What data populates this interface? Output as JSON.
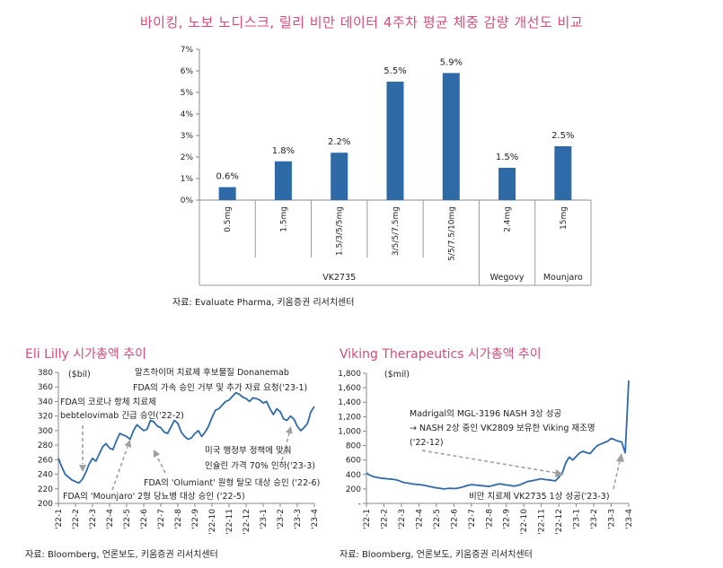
{
  "top_chart": {
    "title": "바이킹, 노보 노디스크, 릴리 비만 데이터 4주차 평균 체중 감량 개선도 비교",
    "source": "자료: Evaluate Pharma, 키움증권 리서치센터",
    "bar_color": "#2e6aa8"
  },
  "left_chart": {
    "title": "Eli Lilly 시가총액 추이",
    "unit": "($bil)",
    "source": "자료: Bloomberg, 언론보도, 키움증권 리서치센터",
    "line_color": "#2e6aa8",
    "annotations": [
      "알츠하이머 치료제 후보물질 Donanemab",
      "FDA의 가속 승인 거부 및 추가 자료 요청('23-1)",
      "FDA의 코로나 항체 치료제",
      "bebtelovimab 긴급 승인('22-2)",
      "미국 행정부 정책에 맞춰",
      "인슐린 가격 70% 인하('23-3)",
      "FDA의 'Olumiant' 원형 탈모 대상 승인 ('22-6)",
      "FDA의 'Mounjaro' 2형 당뇨병 대상 승인 ('22-5)"
    ]
  },
  "right_chart": {
    "title": "Viking Therapeutics 시가총액 추이",
    "unit": "($mil)",
    "source": "자료: Bloomberg, 언론보도, 키움증권 리서치센터",
    "line_color": "#2e6aa8",
    "annotations": [
      "Madrigal의 MGL-3196 NASH 3상 성공",
      "→ NASH 2상 중인 VK2809 보유한 Viking 재조명",
      "('22-12)",
      "비만 치료제 VK2735 1상 성공('23-3)"
    ]
  },
  "chart_data": [
    {
      "type": "bar",
      "title": "바이킹, 노보 노디스크, 릴리 비만 데이터 4주차 평균 체중 감량 개선도 비교",
      "categories": [
        "0.5mg",
        "1.5mg",
        "1.5/3/5/5mg",
        "3/5/5/7.5mg",
        "5/5/7.5/10mg",
        "2.4mg",
        "15mg"
      ],
      "values": [
        0.6,
        1.8,
        2.2,
        5.5,
        5.9,
        1.5,
        2.5
      ],
      "value_labels": [
        "0.6%",
        "1.8%",
        "2.2%",
        "5.5%",
        "5.9%",
        "1.5%",
        "2.5%"
      ],
      "groups": [
        {
          "name": "VK2735",
          "count": 5
        },
        {
          "name": "Wegovy",
          "count": 1
        },
        {
          "name": "Mounjaro",
          "count": 1
        }
      ],
      "y_ticks": [
        "0%",
        "1%",
        "2%",
        "3%",
        "4%",
        "5%",
        "6%",
        "7%"
      ],
      "ylim": [
        0,
        7
      ],
      "grid": false
    },
    {
      "type": "line",
      "title": "Eli Lilly 시가총액 추이",
      "ylabel": "($bil)",
      "ylim": [
        200,
        380
      ],
      "y_ticks": [
        200,
        220,
        240,
        260,
        280,
        300,
        320,
        340,
        360,
        380
      ],
      "x_ticks": [
        "'22-1",
        "'22-2",
        "'22-3",
        "'22-4",
        "'22-5",
        "'22-6",
        "'22-7",
        "'22-8",
        "'22-9",
        "'22-10",
        "'22-11",
        "'22-12",
        "'23-1",
        "'23-2",
        "'23-3",
        "'23-4"
      ],
      "x": [
        0,
        0.2,
        0.4,
        0.6,
        0.8,
        1.0,
        1.2,
        1.4,
        1.6,
        1.8,
        2.0,
        2.2,
        2.4,
        2.6,
        2.8,
        3.0,
        3.2,
        3.4,
        3.6,
        3.8,
        4.0,
        4.2,
        4.4,
        4.6,
        4.8,
        5.0,
        5.2,
        5.4,
        5.6,
        5.8,
        6.0,
        6.2,
        6.4,
        6.6,
        6.8,
        7.0,
        7.2,
        7.4,
        7.6,
        7.8,
        8.0,
        8.2,
        8.4,
        8.6,
        8.8,
        9.0,
        9.2,
        9.4,
        9.6,
        9.8,
        10.0,
        10.2,
        10.4,
        10.6,
        10.8,
        11.0,
        11.2,
        11.4,
        11.6,
        11.8,
        12.0,
        12.2,
        12.4,
        12.6,
        12.8,
        13.0,
        13.2,
        13.4,
        13.6,
        13.8,
        14.0,
        14.2,
        14.4,
        14.6,
        14.8,
        15.0
      ],
      "values": [
        262,
        250,
        240,
        236,
        232,
        230,
        228,
        233,
        242,
        254,
        262,
        258,
        268,
        278,
        282,
        276,
        274,
        286,
        296,
        294,
        292,
        288,
        300,
        308,
        304,
        300,
        302,
        314,
        312,
        306,
        304,
        298,
        296,
        305,
        314,
        310,
        298,
        292,
        288,
        290,
        296,
        300,
        292,
        298,
        306,
        318,
        328,
        330,
        335,
        340,
        342,
        347,
        352,
        350,
        346,
        344,
        340,
        345,
        344,
        342,
        338,
        340,
        330,
        322,
        330,
        326,
        316,
        314,
        320,
        316,
        306,
        300,
        304,
        310,
        326,
        333
      ]
    },
    {
      "type": "line",
      "title": "Viking Therapeutics 시가총액 추이",
      "ylabel": "($mil)",
      "ylim": [
        0,
        1800
      ],
      "y_ticks": [
        "-",
        "200",
        "400",
        "600",
        "800",
        "1,000",
        "1,200",
        "1,400",
        "1,600",
        "1,800"
      ],
      "x_ticks": [
        "'22-1",
        "'22-2",
        "'22-3",
        "'22-4",
        "'22-5",
        "'22-6",
        "'22-7",
        "'22-8",
        "'22-9",
        "'22-10",
        "'22-11",
        "'22-12",
        "'23-1",
        "'23-2",
        "'23-3",
        "'23-4"
      ],
      "x": [
        0,
        0.2,
        0.4,
        0.6,
        0.8,
        1.0,
        1.2,
        1.4,
        1.6,
        1.8,
        2.0,
        2.2,
        2.4,
        2.6,
        2.8,
        3.0,
        3.2,
        3.4,
        3.6,
        3.8,
        4.0,
        4.2,
        4.4,
        4.6,
        4.8,
        5.0,
        5.2,
        5.4,
        5.6,
        5.8,
        6.0,
        6.2,
        6.4,
        6.6,
        6.8,
        7.0,
        7.2,
        7.4,
        7.6,
        7.8,
        8.0,
        8.2,
        8.4,
        8.6,
        8.8,
        9.0,
        9.2,
        9.4,
        9.6,
        9.8,
        10.0,
        10.2,
        10.4,
        10.6,
        10.8,
        11.0,
        11.2,
        11.4,
        11.6,
        11.8,
        12.0,
        12.2,
        12.4,
        12.6,
        12.8,
        13.0,
        13.2,
        13.4,
        13.6,
        13.8,
        14.0,
        14.2,
        14.4,
        14.6,
        14.8,
        14.9,
        15.0
      ],
      "values": [
        420,
        390,
        370,
        360,
        350,
        345,
        340,
        335,
        330,
        320,
        300,
        285,
        280,
        270,
        265,
        260,
        255,
        245,
        235,
        225,
        215,
        210,
        200,
        205,
        210,
        205,
        210,
        220,
        235,
        250,
        260,
        255,
        250,
        245,
        240,
        235,
        245,
        260,
        270,
        265,
        255,
        250,
        240,
        245,
        260,
        280,
        300,
        310,
        320,
        330,
        340,
        330,
        325,
        320,
        310,
        360,
        420,
        560,
        640,
        600,
        650,
        700,
        720,
        700,
        690,
        750,
        800,
        820,
        840,
        860,
        900,
        880,
        860,
        850,
        700,
        1200,
        1700
      ]
    }
  ]
}
